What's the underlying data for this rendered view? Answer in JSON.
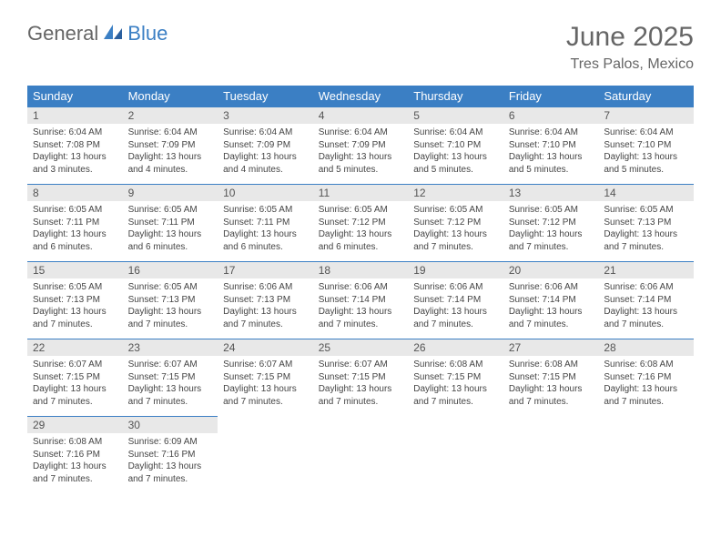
{
  "logo": {
    "general": "General",
    "blue": "Blue"
  },
  "title": "June 2025",
  "location": "Tres Palos, Mexico",
  "colors": {
    "header_bg": "#3b7fc4",
    "header_text": "#ffffff",
    "daynum_bg": "#e8e8e8",
    "daynum_border": "#3b7fc4",
    "body_text": "#444444",
    "title_text": "#666666"
  },
  "weekdays": [
    "Sunday",
    "Monday",
    "Tuesday",
    "Wednesday",
    "Thursday",
    "Friday",
    "Saturday"
  ],
  "first_weekday_index": 0,
  "days": [
    {
      "n": 1,
      "sr": "6:04 AM",
      "ss": "7:08 PM",
      "dl": "13 hours and 3 minutes."
    },
    {
      "n": 2,
      "sr": "6:04 AM",
      "ss": "7:09 PM",
      "dl": "13 hours and 4 minutes."
    },
    {
      "n": 3,
      "sr": "6:04 AM",
      "ss": "7:09 PM",
      "dl": "13 hours and 4 minutes."
    },
    {
      "n": 4,
      "sr": "6:04 AM",
      "ss": "7:09 PM",
      "dl": "13 hours and 5 minutes."
    },
    {
      "n": 5,
      "sr": "6:04 AM",
      "ss": "7:10 PM",
      "dl": "13 hours and 5 minutes."
    },
    {
      "n": 6,
      "sr": "6:04 AM",
      "ss": "7:10 PM",
      "dl": "13 hours and 5 minutes."
    },
    {
      "n": 7,
      "sr": "6:04 AM",
      "ss": "7:10 PM",
      "dl": "13 hours and 5 minutes."
    },
    {
      "n": 8,
      "sr": "6:05 AM",
      "ss": "7:11 PM",
      "dl": "13 hours and 6 minutes."
    },
    {
      "n": 9,
      "sr": "6:05 AM",
      "ss": "7:11 PM",
      "dl": "13 hours and 6 minutes."
    },
    {
      "n": 10,
      "sr": "6:05 AM",
      "ss": "7:11 PM",
      "dl": "13 hours and 6 minutes."
    },
    {
      "n": 11,
      "sr": "6:05 AM",
      "ss": "7:12 PM",
      "dl": "13 hours and 6 minutes."
    },
    {
      "n": 12,
      "sr": "6:05 AM",
      "ss": "7:12 PM",
      "dl": "13 hours and 7 minutes."
    },
    {
      "n": 13,
      "sr": "6:05 AM",
      "ss": "7:12 PM",
      "dl": "13 hours and 7 minutes."
    },
    {
      "n": 14,
      "sr": "6:05 AM",
      "ss": "7:13 PM",
      "dl": "13 hours and 7 minutes."
    },
    {
      "n": 15,
      "sr": "6:05 AM",
      "ss": "7:13 PM",
      "dl": "13 hours and 7 minutes."
    },
    {
      "n": 16,
      "sr": "6:05 AM",
      "ss": "7:13 PM",
      "dl": "13 hours and 7 minutes."
    },
    {
      "n": 17,
      "sr": "6:06 AM",
      "ss": "7:13 PM",
      "dl": "13 hours and 7 minutes."
    },
    {
      "n": 18,
      "sr": "6:06 AM",
      "ss": "7:14 PM",
      "dl": "13 hours and 7 minutes."
    },
    {
      "n": 19,
      "sr": "6:06 AM",
      "ss": "7:14 PM",
      "dl": "13 hours and 7 minutes."
    },
    {
      "n": 20,
      "sr": "6:06 AM",
      "ss": "7:14 PM",
      "dl": "13 hours and 7 minutes."
    },
    {
      "n": 21,
      "sr": "6:06 AM",
      "ss": "7:14 PM",
      "dl": "13 hours and 7 minutes."
    },
    {
      "n": 22,
      "sr": "6:07 AM",
      "ss": "7:15 PM",
      "dl": "13 hours and 7 minutes."
    },
    {
      "n": 23,
      "sr": "6:07 AM",
      "ss": "7:15 PM",
      "dl": "13 hours and 7 minutes."
    },
    {
      "n": 24,
      "sr": "6:07 AM",
      "ss": "7:15 PM",
      "dl": "13 hours and 7 minutes."
    },
    {
      "n": 25,
      "sr": "6:07 AM",
      "ss": "7:15 PM",
      "dl": "13 hours and 7 minutes."
    },
    {
      "n": 26,
      "sr": "6:08 AM",
      "ss": "7:15 PM",
      "dl": "13 hours and 7 minutes."
    },
    {
      "n": 27,
      "sr": "6:08 AM",
      "ss": "7:15 PM",
      "dl": "13 hours and 7 minutes."
    },
    {
      "n": 28,
      "sr": "6:08 AM",
      "ss": "7:16 PM",
      "dl": "13 hours and 7 minutes."
    },
    {
      "n": 29,
      "sr": "6:08 AM",
      "ss": "7:16 PM",
      "dl": "13 hours and 7 minutes."
    },
    {
      "n": 30,
      "sr": "6:09 AM",
      "ss": "7:16 PM",
      "dl": "13 hours and 7 minutes."
    }
  ],
  "labels": {
    "sunrise": "Sunrise:",
    "sunset": "Sunset:",
    "daylight": "Daylight:"
  }
}
